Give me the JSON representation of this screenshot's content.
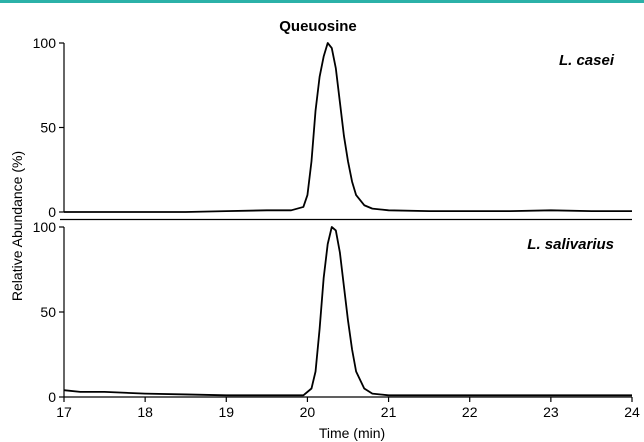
{
  "colors": {
    "top_rule": "#2bb1a8",
    "trace": "#000000",
    "axis": "#000000",
    "background": "#ffffff"
  },
  "chart_data": {
    "type": "line",
    "title": "Queuosine",
    "xlabel": "Time (min)",
    "ylabel": "Relative Abundance (%)",
    "xlim": [
      17,
      24
    ],
    "x_ticks": [
      "17",
      "18",
      "19",
      "20",
      "21",
      "22",
      "23",
      "24"
    ],
    "grid": false,
    "legend": "none",
    "panels": [
      {
        "label": "L. casei",
        "ylim": [
          0,
          100
        ],
        "y_ticks": [
          "0",
          "50",
          "100"
        ],
        "x": [
          17.0,
          17.5,
          18.0,
          18.5,
          19.0,
          19.5,
          19.8,
          19.95,
          20.0,
          20.05,
          20.1,
          20.15,
          20.2,
          20.25,
          20.3,
          20.35,
          20.4,
          20.45,
          20.5,
          20.55,
          20.6,
          20.7,
          20.8,
          21.0,
          21.5,
          22.0,
          22.5,
          23.0,
          23.5,
          24.0
        ],
        "values": [
          0,
          0,
          0,
          0,
          0.5,
          1,
          1,
          3,
          10,
          30,
          60,
          80,
          92,
          100,
          97,
          85,
          65,
          45,
          30,
          18,
          10,
          4,
          2,
          1,
          0.5,
          0.5,
          0.5,
          1,
          0.5,
          0.5
        ]
      },
      {
        "label": "L. salivarius",
        "ylim": [
          0,
          100
        ],
        "y_ticks": [
          "0",
          "50",
          "100"
        ],
        "x": [
          17.0,
          17.2,
          17.5,
          18.0,
          18.5,
          19.0,
          19.5,
          19.95,
          20.05,
          20.1,
          20.15,
          20.2,
          20.25,
          20.3,
          20.35,
          20.4,
          20.45,
          20.5,
          20.55,
          20.6,
          20.7,
          20.8,
          21.0,
          21.5,
          22.0,
          22.5,
          23.0,
          23.5,
          24.0
        ],
        "values": [
          4,
          3,
          3,
          2,
          1.5,
          1,
          1,
          1,
          5,
          15,
          40,
          70,
          90,
          100,
          98,
          85,
          65,
          45,
          28,
          15,
          5,
          2,
          1,
          1,
          1,
          1,
          1,
          1,
          1
        ]
      }
    ]
  }
}
